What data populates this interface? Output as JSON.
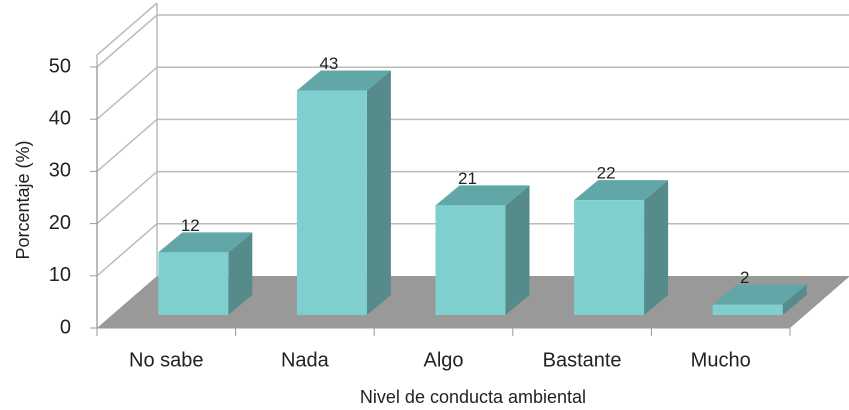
{
  "chart_data": {
    "type": "bar3d",
    "categories": [
      "No sabe",
      "Nada",
      "Algo",
      "Bastante",
      "Mucho"
    ],
    "values": [
      12,
      43,
      21,
      22,
      2
    ],
    "color": "#7fcfcf",
    "ylim": [
      0,
      50
    ],
    "yticks": [
      0,
      10,
      20,
      30,
      40,
      50
    ],
    "xlabel": "Nivel de conducta ambiental",
    "ylabel": "Porcentaje (%)",
    "grid": true
  }
}
